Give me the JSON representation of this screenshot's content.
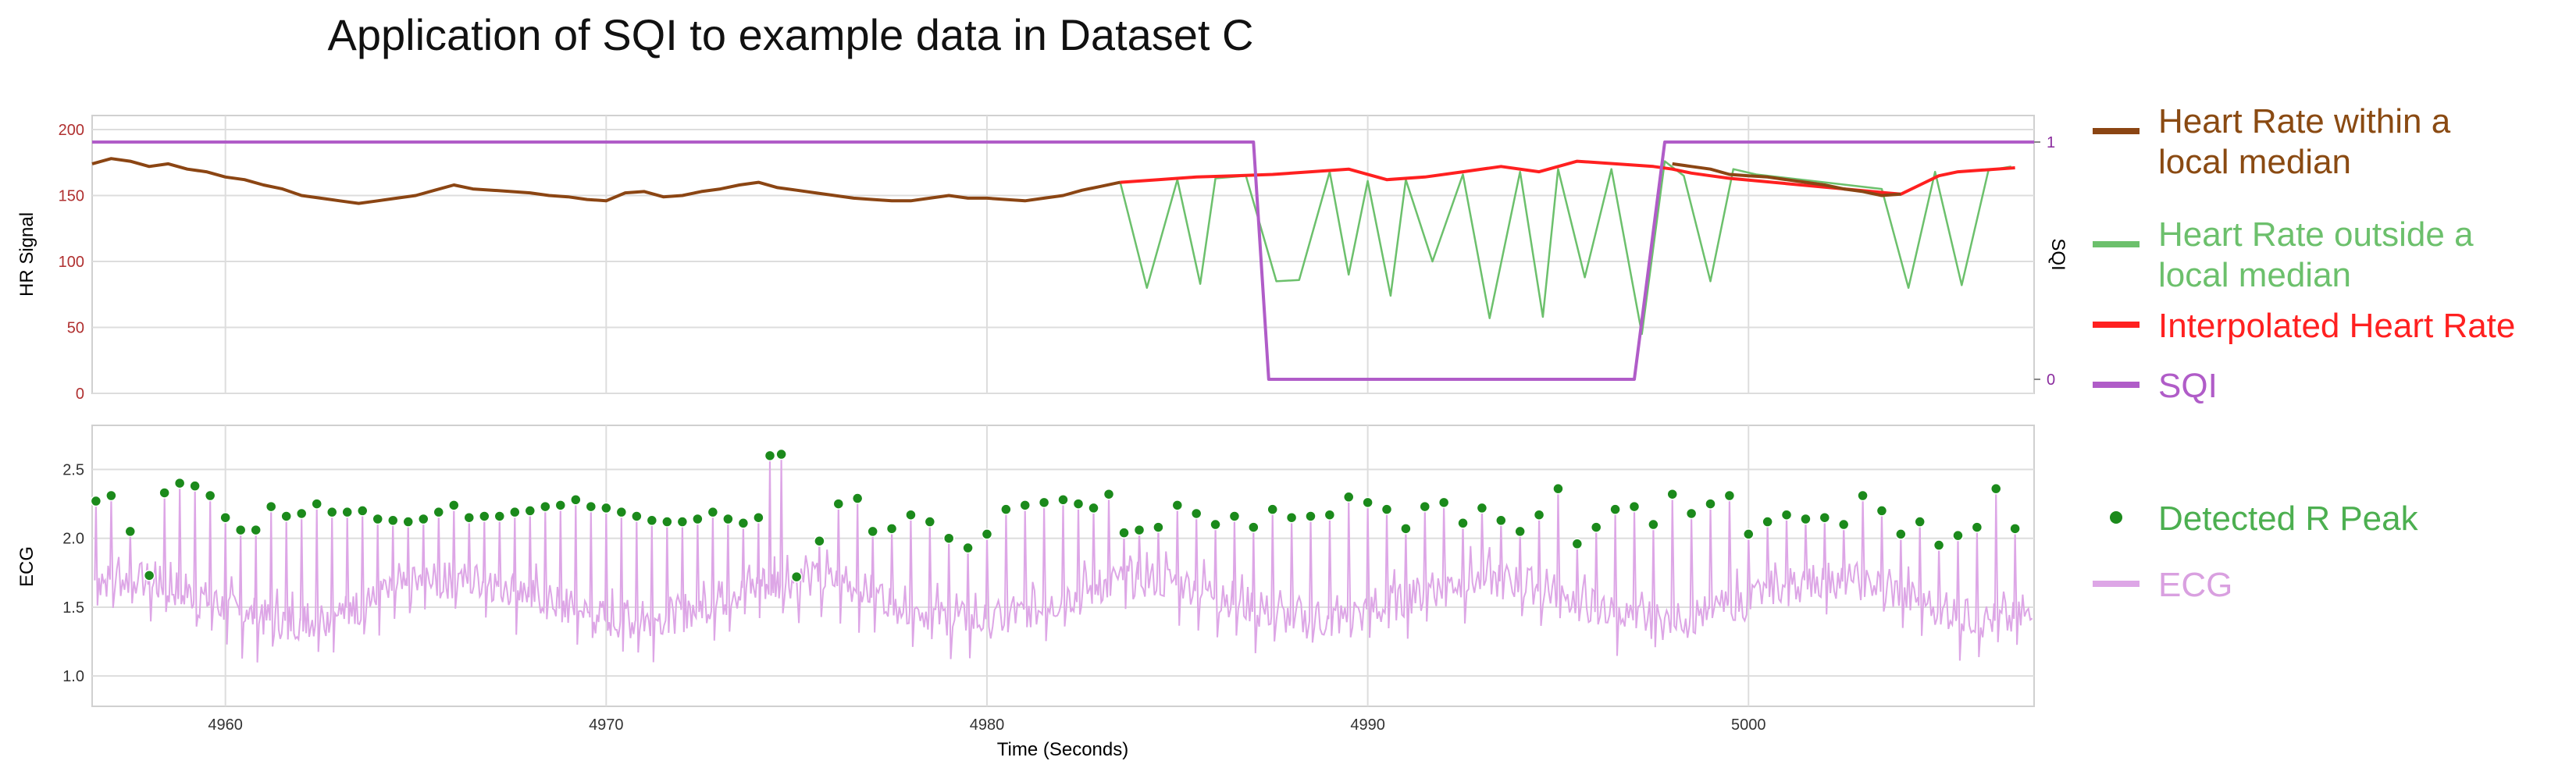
{
  "page": {
    "title": "Application of SQI to example data in Dataset C"
  },
  "colors": {
    "hr_local": "#8b4513",
    "hr_outside": "#6cc06c",
    "hr_interp": "#ff2020",
    "sqi": "#b05cc8",
    "peak": "#1b8a1b",
    "ecg": "#dda6e6",
    "hr_axis": "#b03030",
    "sqi_axis": "#8a2c9e"
  },
  "chart_data": [
    {
      "type": "line",
      "ylabel": "HR Signal",
      "y2label": "SQI",
      "xlim": [
        4956.5,
        5007.5
      ],
      "ylim": [
        0,
        200
      ],
      "y2lim": [
        0,
        1
      ],
      "yticks": [
        "0",
        "50",
        "100",
        "150",
        "200"
      ],
      "y2ticks": [
        "0",
        "1"
      ],
      "grid": true,
      "series": [
        {
          "name": "Heart Rate within a local median",
          "x": [
            4956.5,
            4957,
            4957.5,
            4958,
            4958.5,
            4959,
            4959.5,
            4960,
            4960.5,
            4961,
            4961.5,
            4962,
            4962.5,
            4963,
            4963.5,
            4964,
            4964.5,
            4965,
            4965.5,
            4966,
            4966.5,
            4967,
            4967.5,
            4968,
            4968.5,
            4969,
            4969.5,
            4970,
            4970.5,
            4971,
            4971.5,
            4972,
            4972.5,
            4973,
            4973.5,
            4974,
            4974.5,
            4975,
            4975.5,
            4976,
            4976.5,
            4977,
            4977.5,
            4978,
            4978.5,
            4979,
            4979.5,
            4980,
            4980.5,
            4981,
            4981.5,
            4982,
            4982.5,
            4983,
            4983.5
          ],
          "values": [
            174,
            178,
            176,
            172,
            174,
            170,
            168,
            164,
            162,
            158,
            155,
            150,
            148,
            146,
            144,
            146,
            148,
            150,
            154,
            158,
            155,
            154,
            153,
            152,
            150,
            149,
            147,
            146,
            152,
            153,
            149,
            150,
            153,
            155,
            158,
            160,
            156,
            154,
            152,
            150,
            148,
            147,
            146,
            146,
            148,
            150,
            148,
            148,
            147,
            146,
            148,
            150,
            154,
            157,
            160
          ]
        },
        {
          "name": "Heart Rate within a local median",
          "x": [
            4998,
            4998.5,
            4999,
            4999.5,
            5000,
            5000.5,
            5001,
            5001.5,
            5002,
            5002.5,
            5003,
            5003.5,
            5004
          ],
          "values": [
            174,
            172,
            170,
            166,
            165,
            164,
            162,
            160,
            158,
            155,
            153,
            150,
            151
          ]
        },
        {
          "name": "Heart Rate outside a local median",
          "x": [
            4983.5,
            4984.2,
            4985,
            4985.6,
            4986,
            4986.8,
            4987.6,
            4988.2,
            4989,
            4989.5,
            4990,
            4990.6,
            4991,
            4991.7,
            4992.5,
            4993.2,
            4994,
            4994.6,
            4995,
            4995.7,
            4996.4,
            4997.2,
            4997.8,
            4998.3,
            4999,
            4999.6,
            5000.2,
            5003.5,
            5004.2,
            5004.9,
            5005.6,
            5006.3,
            5006.9
          ],
          "values": [
            160,
            80,
            162,
            83,
            163,
            165,
            85,
            86,
            168,
            90,
            161,
            74,
            162,
            100,
            166,
            57,
            168,
            58,
            170,
            88,
            170,
            45,
            176,
            165,
            85,
            170,
            166,
            155,
            80,
            168,
            82,
            169,
            172
          ]
        },
        {
          "name": "Interpolated Heart Rate",
          "x": [
            4983.5,
            4984.5,
            4985.5,
            4986.5,
            4987.5,
            4988.5,
            4989.5,
            4990.5,
            4991.5,
            4992.5,
            4993.5,
            4994.5,
            4995.5,
            4996.5,
            4997.5,
            4998,
            4998.5,
            4999,
            4999.5,
            5004,
            5004.5,
            5005,
            5005.5,
            5006,
            5006.5,
            5007
          ],
          "values": [
            160,
            162,
            164,
            165,
            166,
            168,
            170,
            162,
            164,
            168,
            172,
            168,
            176,
            174,
            172,
            170,
            167,
            165,
            163,
            151,
            158,
            165,
            168,
            169,
            170,
            171
          ]
        },
        {
          "name": "SQI",
          "axis": "y2",
          "x": [
            4956.5,
            4987.0,
            4987.4,
            4997.0,
            4997.8,
            5007.5
          ],
          "values": [
            1,
            1,
            0,
            0,
            1,
            1
          ]
        }
      ]
    },
    {
      "type": "line",
      "xlabel": "Time (Seconds)",
      "ylabel": "ECG",
      "xlim": [
        4956.5,
        5007.5
      ],
      "ylim": [
        0.78,
        2.82
      ],
      "xticks": [
        "4960",
        "4970",
        "4980",
        "4990",
        "5000"
      ],
      "yticks": [
        "1.0",
        "1.5",
        "2.0",
        "2.5"
      ],
      "grid": true,
      "series": [
        {
          "name": "Detected R Peak",
          "x": [
            4956.6,
            4957.0,
            4957.5,
            4958.0,
            4958.4,
            4958.8,
            4959.2,
            4959.6,
            4960.0,
            4960.4,
            4960.8,
            4961.2,
            4961.6,
            4962.0,
            4962.4,
            4962.8,
            4963.2,
            4963.6,
            4964.0,
            4964.4,
            4964.8,
            4965.2,
            4965.6,
            4966.0,
            4966.4,
            4966.8,
            4967.2,
            4967.6,
            4968.0,
            4968.4,
            4968.8,
            4969.2,
            4969.6,
            4970.0,
            4970.4,
            4970.8,
            4971.2,
            4971.6,
            4972.0,
            4972.4,
            4972.8,
            4973.2,
            4973.6,
            4974.0,
            4974.3,
            4974.6,
            4975.0,
            4975.6,
            4976.1,
            4976.6,
            4977.0,
            4977.5,
            4978.0,
            4978.5,
            4979.0,
            4979.5,
            4980.0,
            4980.5,
            4981.0,
            4981.5,
            4982.0,
            4982.4,
            4982.8,
            4983.2,
            4983.6,
            4984.0,
            4984.5,
            4985.0,
            4985.5,
            4986.0,
            4986.5,
            4987.0,
            4987.5,
            4988.0,
            4988.5,
            4989.0,
            4989.5,
            4990.0,
            4990.5,
            4991.0,
            4991.5,
            4992.0,
            4992.5,
            4993.0,
            4993.5,
            4994.0,
            4994.5,
            4995.0,
            4995.5,
            4996.0,
            4996.5,
            4997.0,
            4997.5,
            4998.0,
            4998.5,
            4999.0,
            4999.5,
            5000.0,
            5000.5,
            5001.0,
            5001.5,
            5002.0,
            5002.5,
            5003.0,
            5003.5,
            5004.0,
            5004.5,
            5005.0,
            5005.5,
            5006.0,
            5006.5,
            5007.0
          ],
          "values": [
            2.27,
            2.31,
            2.05,
            1.73,
            2.33,
            2.4,
            2.38,
            2.31,
            2.15,
            2.06,
            2.06,
            2.23,
            2.16,
            2.18,
            2.25,
            2.19,
            2.19,
            2.2,
            2.14,
            2.13,
            2.12,
            2.14,
            2.19,
            2.24,
            2.15,
            2.16,
            2.16,
            2.19,
            2.2,
            2.23,
            2.24,
            2.28,
            2.23,
            2.22,
            2.19,
            2.16,
            2.13,
            2.12,
            2.12,
            2.14,
            2.19,
            2.14,
            2.11,
            2.15,
            2.6,
            2.61,
            1.72,
            1.98,
            2.25,
            2.29,
            2.05,
            2.07,
            2.17,
            2.12,
            2.0,
            1.93,
            2.03,
            2.21,
            2.24,
            2.26,
            2.28,
            2.25,
            2.22,
            2.32,
            2.04,
            2.06,
            2.08,
            2.24,
            2.18,
            2.1,
            2.16,
            2.08,
            2.21,
            2.15,
            2.16,
            2.17,
            2.3,
            2.26,
            2.21,
            2.07,
            2.23,
            2.26,
            2.11,
            2.22,
            2.13,
            2.05,
            2.17,
            2.36,
            1.96,
            2.08,
            2.21,
            2.23,
            2.1,
            2.32,
            2.18,
            2.25,
            2.31,
            2.03,
            2.12,
            2.17,
            2.14,
            2.15,
            2.1,
            2.31,
            2.2,
            2.03,
            2.12,
            1.95,
            2.02,
            2.08,
            2.36,
            2.07
          ]
        },
        {
          "name": "ECG"
        }
      ]
    }
  ],
  "legend": {
    "items": [
      {
        "label": "Heart Rate within a\nlocal median"
      },
      {
        "label": "Heart Rate outside a\nlocal median"
      },
      {
        "label": "Interpolated Heart Rate"
      },
      {
        "label": "SQI"
      },
      {
        "label": "Detected R Peak"
      },
      {
        "label": "ECG"
      }
    ]
  }
}
